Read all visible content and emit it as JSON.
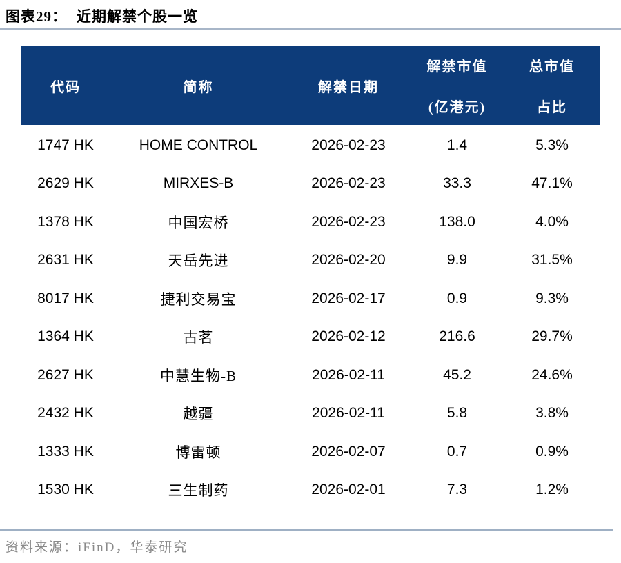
{
  "figure": {
    "label": "图表29：",
    "title": "近期解禁个股一览"
  },
  "table": {
    "columns": [
      {
        "label": "代码",
        "label_line2": ""
      },
      {
        "label": "简称",
        "label_line2": ""
      },
      {
        "label": "解禁日期",
        "label_line2": ""
      },
      {
        "label": "解禁市值",
        "label_line2": "(亿港元)"
      },
      {
        "label": "总市值",
        "label_line2": "占比"
      }
    ],
    "rows": [
      [
        "1747 HK",
        "HOME CONTROL",
        "2026-02-23",
        "1.4",
        "5.3%"
      ],
      [
        "2629 HK",
        "MIRXES-B",
        "2026-02-23",
        "33.3",
        "47.1%"
      ],
      [
        "1378 HK",
        "中国宏桥",
        "2026-02-23",
        "138.0",
        "4.0%"
      ],
      [
        "2631 HK",
        "天岳先进",
        "2026-02-20",
        "9.9",
        "31.5%"
      ],
      [
        "8017 HK",
        "捷利交易宝",
        "2026-02-17",
        "0.9",
        "9.3%"
      ],
      [
        "1364 HK",
        "古茗",
        "2026-02-12",
        "216.6",
        "29.7%"
      ],
      [
        "2627 HK",
        "中慧生物-B",
        "2026-02-11",
        "45.2",
        "24.6%"
      ],
      [
        "2432 HK",
        "越疆",
        "2026-02-11",
        "5.8",
        "3.8%"
      ],
      [
        "1333 HK",
        "博雷顿",
        "2026-02-07",
        "0.7",
        "0.9%"
      ],
      [
        "1530 HK",
        "三生制药",
        "2026-02-01",
        "7.3",
        "1.2%"
      ]
    ]
  },
  "source": {
    "text": "资料来源：iFinD，华泰研究"
  },
  "colors": {
    "header_bg": "#0d3c7a",
    "header_text": "#ffffff",
    "title_rule": "#a8b6c8",
    "source_rule": "#9fb0c4",
    "source_text": "#8a8a8a",
    "body_text": "#000000"
  }
}
